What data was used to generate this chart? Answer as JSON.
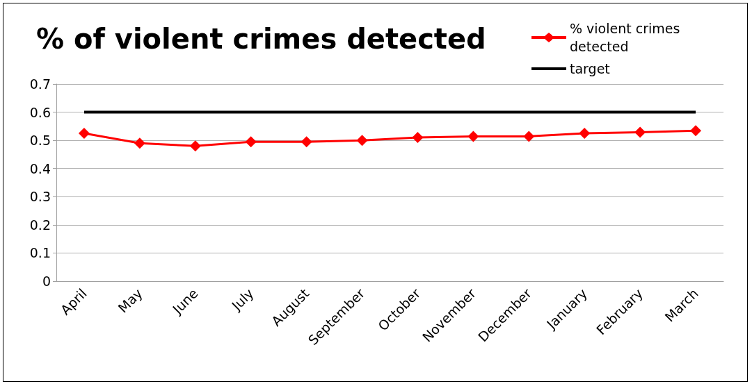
{
  "chart_data": {
    "type": "line",
    "title": "% of violent crimes detected",
    "categories": [
      "April",
      "May",
      "June",
      "July",
      "August",
      "September",
      "October",
      "November",
      "December",
      "January",
      "February",
      "March"
    ],
    "series": [
      {
        "name": "% violent crimes detected",
        "color": "#ff0000",
        "marker": "diamond",
        "values": [
          0.525,
          0.49,
          0.48,
          0.495,
          0.495,
          0.5,
          0.51,
          0.514,
          0.514,
          0.525,
          0.529,
          0.534
        ]
      },
      {
        "name": "target",
        "color": "#000000",
        "marker": "none",
        "values": [
          0.6,
          0.6,
          0.6,
          0.6,
          0.6,
          0.6,
          0.6,
          0.6,
          0.6,
          0.6,
          0.6,
          0.6
        ]
      }
    ],
    "ylim": [
      0,
      0.7
    ],
    "yticks": [
      0,
      0.1,
      0.2,
      0.3,
      0.4,
      0.5,
      0.6,
      0.7
    ],
    "grid": "y",
    "legend": "top right"
  }
}
